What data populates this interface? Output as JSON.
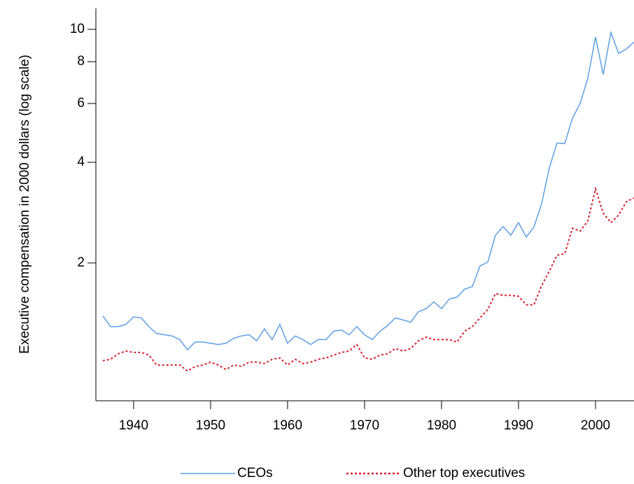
{
  "chart_data": {
    "type": "line",
    "y_label": "Executive compensation in 2000 dollars (log scale)",
    "log_y": true,
    "legend": "bottom",
    "x": [
      1936,
      1937,
      1938,
      1939,
      1940,
      1941,
      1942,
      1943,
      1944,
      1945,
      1946,
      1947,
      1948,
      1949,
      1950,
      1951,
      1952,
      1953,
      1954,
      1955,
      1956,
      1957,
      1958,
      1959,
      1960,
      1961,
      1962,
      1963,
      1964,
      1965,
      1966,
      1967,
      1968,
      1969,
      1970,
      1971,
      1972,
      1973,
      1974,
      1975,
      1976,
      1977,
      1978,
      1979,
      1980,
      1981,
      1982,
      1983,
      1984,
      1985,
      1986,
      1987,
      1988,
      1989,
      1990,
      1991,
      1992,
      1993,
      1994,
      1995,
      1996,
      1997,
      1998,
      1999,
      2000,
      2001,
      2002,
      2003,
      2004,
      2005
    ],
    "series": [
      {
        "name": "CEOs",
        "color": "#5e9fe6",
        "dash": "solid",
        "values": [
          1.39,
          1.29,
          1.29,
          1.31,
          1.38,
          1.37,
          1.29,
          1.23,
          1.22,
          1.21,
          1.18,
          1.1,
          1.16,
          1.16,
          1.15,
          1.14,
          1.15,
          1.19,
          1.21,
          1.22,
          1.17,
          1.27,
          1.18,
          1.31,
          1.15,
          1.21,
          1.18,
          1.14,
          1.18,
          1.18,
          1.25,
          1.26,
          1.22,
          1.29,
          1.22,
          1.18,
          1.25,
          1.3,
          1.37,
          1.35,
          1.33,
          1.43,
          1.46,
          1.53,
          1.46,
          1.56,
          1.58,
          1.67,
          1.7,
          1.96,
          2.01,
          2.42,
          2.57,
          2.42,
          2.64,
          2.39,
          2.56,
          3.01,
          3.85,
          4.57,
          4.55,
          5.41,
          6.0,
          7.13,
          9.49,
          7.33,
          9.78,
          8.47,
          8.73,
          9.15
        ]
      },
      {
        "name": "Other top executives",
        "color": "#d42030",
        "dash": "dotted",
        "values": [
          1.02,
          1.03,
          1.07,
          1.09,
          1.08,
          1.08,
          1.06,
          0.99,
          0.99,
          0.99,
          0.99,
          0.95,
          0.98,
          0.99,
          1.01,
          0.99,
          0.96,
          0.99,
          0.98,
          1.01,
          1.01,
          1.0,
          1.03,
          1.04,
          0.99,
          1.03,
          1.0,
          1.01,
          1.03,
          1.04,
          1.06,
          1.08,
          1.09,
          1.14,
          1.04,
          1.03,
          1.06,
          1.07,
          1.11,
          1.09,
          1.11,
          1.17,
          1.2,
          1.18,
          1.18,
          1.18,
          1.16,
          1.25,
          1.29,
          1.37,
          1.45,
          1.62,
          1.6,
          1.6,
          1.59,
          1.5,
          1.5,
          1.71,
          1.89,
          2.11,
          2.13,
          2.54,
          2.49,
          2.67,
          3.33,
          2.82,
          2.64,
          2.78,
          3.05,
          3.13
        ]
      }
    ],
    "xlim": [
      1935.1,
      2005
    ],
    "xticks": [
      1940,
      1950,
      1960,
      1970,
      1980,
      1990,
      2000
    ],
    "ylim": [
      0.774,
      11.55
    ],
    "yticks": [
      2,
      4,
      6,
      8,
      10
    ]
  }
}
